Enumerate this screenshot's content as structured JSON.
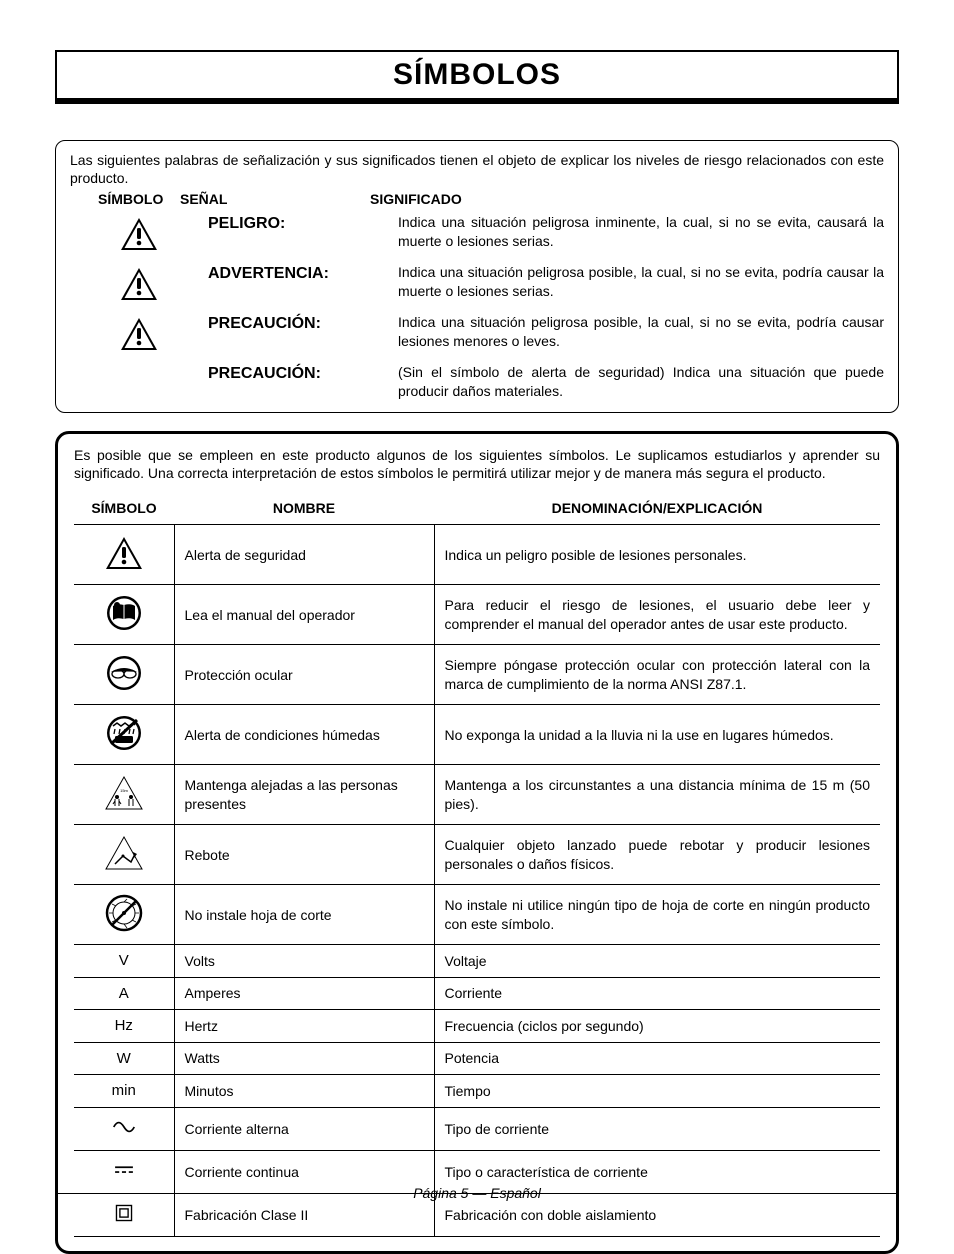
{
  "title": "SÍMBOLOS",
  "signal_box": {
    "intro": "Las siguientes palabras de señalización y sus significados tienen el objeto de explicar los niveles de riesgo relacionados con este producto.",
    "headers": {
      "symbol": "SÍMBOLO",
      "signal": "SEÑAL",
      "meaning": "SIGNIFICADO"
    },
    "rows": [
      {
        "has_icon": true,
        "signal": "PELIGRO:",
        "meaning": "Indica una situación peligrosa inminente, la cual, si no se evita, causará la muerte o lesiones serias."
      },
      {
        "has_icon": true,
        "signal": "ADVERTENCIA:",
        "meaning": "Indica una situación peligrosa posible, la cual, si no se evita, podría causar la muerte o lesiones serias."
      },
      {
        "has_icon": true,
        "signal": "PRECAUCIÓN:",
        "meaning": "Indica una situación peligrosa posible, la cual, si no se evita, podría causar lesiones menores o leves."
      },
      {
        "has_icon": false,
        "signal": "PRECAUCIÓN:",
        "meaning": "(Sin el símbolo de alerta de seguridad) Indica una situación que puede producir daños materiales."
      }
    ]
  },
  "symbols_box": {
    "intro": "Es posible que se empleen en este producto algunos de los siguientes símbolos. Le suplicamos estudiarlos y aprender su significado. Una correcta interpretación de estos símbolos le permitirá utilizar mejor y de manera más segura el producto.",
    "headers": {
      "symbol": "SÍMBOLO",
      "name": "NOMBRE",
      "desc": "DENOMINACIÓN/EXPLICACIÓN"
    },
    "rows": [
      {
        "icon": "alert",
        "name": "Alerta de seguridad",
        "desc": "Indica un peligro posible de lesiones personales."
      },
      {
        "icon": "manual",
        "name": "Lea el manual del operador",
        "desc": "Para reducir el riesgo de lesiones, el usuario debe leer y comprender el manual del operador antes de usar este producto."
      },
      {
        "icon": "eye",
        "name": "Protección ocular",
        "desc": "Siempre póngase protección ocular con protección lateral con la marca de cumplimiento de la norma ANSI Z87.1."
      },
      {
        "icon": "wet",
        "name": "Alerta de condiciones húmedas",
        "desc": "No exponga la unidad a la lluvia ni la use en lugares húmedos."
      },
      {
        "icon": "bystander",
        "name": "Mantenga alejadas a las personas presentes",
        "desc": "Mantenga a los circunstantes a una distancia mínima de 15 m (50 pies)."
      },
      {
        "icon": "ricochet",
        "name": "Rebote",
        "desc": "Cualquier objeto lanzado puede rebotar y producir lesiones personales o daños físicos."
      },
      {
        "icon": "noblade",
        "name": "No instale hoja de corte",
        "desc": "No instale ni utilice ningún tipo de hoja de corte en ningún producto con este símbolo."
      },
      {
        "icon": "text",
        "sym_text": "V",
        "name": "Volts",
        "desc": "Voltaje"
      },
      {
        "icon": "text",
        "sym_text": "A",
        "name": "Amperes",
        "desc": "Corriente"
      },
      {
        "icon": "text",
        "sym_text": "Hz",
        "name": "Hertz",
        "desc": "Frecuencia (ciclos por segundo)"
      },
      {
        "icon": "text",
        "sym_text": "W",
        "name": "Watts",
        "desc": "Potencia"
      },
      {
        "icon": "text",
        "sym_text": "min",
        "name": "Minutos",
        "desc": "Tiempo"
      },
      {
        "icon": "ac",
        "name": "Corriente alterna",
        "desc": "Tipo de corriente"
      },
      {
        "icon": "dc",
        "name": "Corriente continua",
        "desc": "Tipo o característica de corriente"
      },
      {
        "icon": "class2",
        "name": "Fabricación Clase II",
        "desc": "Fabricación con doble aislamiento"
      }
    ]
  },
  "footer": "Página 5  — Español",
  "colors": {
    "text": "#000000",
    "bg": "#ffffff"
  }
}
